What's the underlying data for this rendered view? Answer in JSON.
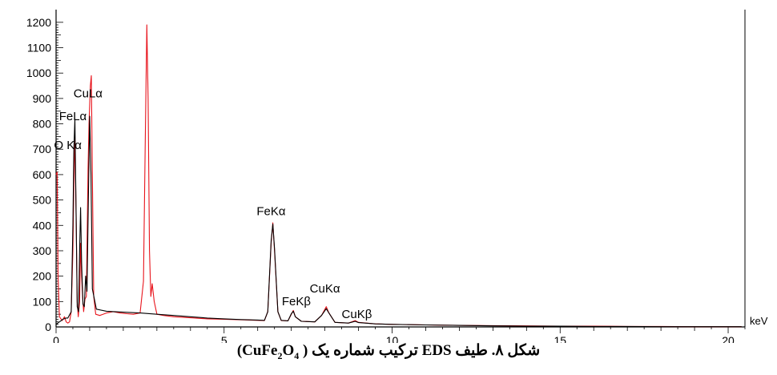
{
  "chart_data": {
    "type": "line",
    "xlabel": "keV",
    "ylabel": "",
    "xlim": [
      0,
      20.5
    ],
    "ylim": [
      0,
      1250
    ],
    "x_ticks": [
      0,
      5,
      10,
      15,
      20
    ],
    "y_ticks": [
      0,
      100,
      200,
      300,
      400,
      500,
      600,
      700,
      800,
      900,
      1000,
      1100,
      1200
    ],
    "grid": false,
    "series": [
      {
        "color": "#e8141c",
        "points": [
          [
            0.0,
            600
          ],
          [
            0.03,
            610
          ],
          [
            0.06,
            200
          ],
          [
            0.1,
            40
          ],
          [
            0.18,
            25
          ],
          [
            0.25,
            40
          ],
          [
            0.3,
            20
          ],
          [
            0.35,
            15
          ],
          [
            0.4,
            20
          ],
          [
            0.45,
            60
          ],
          [
            0.5,
            300
          ],
          [
            0.53,
            560
          ],
          [
            0.56,
            750
          ],
          [
            0.6,
            400
          ],
          [
            0.63,
            100
          ],
          [
            0.66,
            40
          ],
          [
            0.7,
            100
          ],
          [
            0.73,
            330
          ],
          [
            0.76,
            200
          ],
          [
            0.79,
            120
          ],
          [
            0.82,
            60
          ],
          [
            0.86,
            110
          ],
          [
            0.9,
            120
          ],
          [
            0.95,
            620
          ],
          [
            0.98,
            800
          ],
          [
            1.02,
            950
          ],
          [
            1.05,
            990
          ],
          [
            1.08,
            600
          ],
          [
            1.12,
            120
          ],
          [
            1.18,
            50
          ],
          [
            1.3,
            45
          ],
          [
            1.5,
            55
          ],
          [
            1.7,
            60
          ],
          [
            1.9,
            55
          ],
          [
            2.1,
            52
          ],
          [
            2.3,
            50
          ],
          [
            2.5,
            55
          ],
          [
            2.6,
            180
          ],
          [
            2.65,
            700
          ],
          [
            2.7,
            1190
          ],
          [
            2.74,
            900
          ],
          [
            2.78,
            300
          ],
          [
            2.82,
            120
          ],
          [
            2.86,
            170
          ],
          [
            2.92,
            100
          ],
          [
            3.0,
            50
          ],
          [
            3.2,
            45
          ],
          [
            3.5,
            40
          ],
          [
            4.0,
            36
          ],
          [
            4.5,
            32
          ],
          [
            5.0,
            30
          ],
          [
            5.5,
            28
          ],
          [
            6.0,
            26
          ],
          [
            6.2,
            25
          ],
          [
            6.3,
            60
          ],
          [
            6.4,
            330
          ],
          [
            6.45,
            410
          ],
          [
            6.5,
            300
          ],
          [
            6.6,
            60
          ],
          [
            6.7,
            25
          ],
          [
            6.9,
            24
          ],
          [
            7.0,
            50
          ],
          [
            7.06,
            65
          ],
          [
            7.12,
            40
          ],
          [
            7.3,
            22
          ],
          [
            7.7,
            20
          ],
          [
            7.9,
            45
          ],
          [
            8.04,
            80
          ],
          [
            8.12,
            55
          ],
          [
            8.3,
            18
          ],
          [
            8.7,
            15
          ],
          [
            8.9,
            25
          ],
          [
            9.0,
            18
          ],
          [
            9.5,
            12
          ],
          [
            10.0,
            10
          ],
          [
            11.0,
            8
          ],
          [
            12.0,
            6
          ],
          [
            13.0,
            5
          ],
          [
            14.0,
            4
          ],
          [
            15.0,
            3
          ],
          [
            16.0,
            3
          ],
          [
            17.0,
            2
          ],
          [
            18.0,
            2
          ],
          [
            19.0,
            1
          ],
          [
            20.0,
            1
          ],
          [
            20.4,
            1
          ]
        ]
      },
      {
        "color": "#000000",
        "points": [
          [
            0.0,
            10
          ],
          [
            0.05,
            15
          ],
          [
            0.1,
            20
          ],
          [
            0.2,
            30
          ],
          [
            0.3,
            35
          ],
          [
            0.35,
            35
          ],
          [
            0.45,
            60
          ],
          [
            0.5,
            400
          ],
          [
            0.53,
            700
          ],
          [
            0.56,
            820
          ],
          [
            0.59,
            500
          ],
          [
            0.63,
            80
          ],
          [
            0.67,
            60
          ],
          [
            0.7,
            300
          ],
          [
            0.73,
            470
          ],
          [
            0.76,
            250
          ],
          [
            0.8,
            90
          ],
          [
            0.84,
            80
          ],
          [
            0.88,
            200
          ],
          [
            0.92,
            140
          ],
          [
            0.96,
            500
          ],
          [
            1.0,
            830
          ],
          [
            1.04,
            600
          ],
          [
            1.08,
            150
          ],
          [
            1.2,
            70
          ],
          [
            1.5,
            62
          ],
          [
            2.0,
            58
          ],
          [
            2.5,
            55
          ],
          [
            3.0,
            50
          ],
          [
            3.5,
            45
          ],
          [
            4.0,
            40
          ],
          [
            4.5,
            35
          ],
          [
            5.0,
            32
          ],
          [
            5.5,
            29
          ],
          [
            6.0,
            27
          ],
          [
            6.2,
            26
          ],
          [
            6.3,
            60
          ],
          [
            6.4,
            340
          ],
          [
            6.45,
            405
          ],
          [
            6.5,
            310
          ],
          [
            6.6,
            60
          ],
          [
            6.7,
            26
          ],
          [
            6.9,
            24
          ],
          [
            7.0,
            52
          ],
          [
            7.06,
            62
          ],
          [
            7.12,
            40
          ],
          [
            7.3,
            22
          ],
          [
            7.7,
            20
          ],
          [
            7.9,
            45
          ],
          [
            8.04,
            72
          ],
          [
            8.12,
            55
          ],
          [
            8.3,
            18
          ],
          [
            8.7,
            15
          ],
          [
            8.9,
            22
          ],
          [
            9.0,
            17
          ],
          [
            9.5,
            12
          ],
          [
            10.0,
            10
          ],
          [
            11.0,
            8
          ],
          [
            12.0,
            6
          ],
          [
            13.0,
            4
          ],
          [
            14.0,
            3
          ],
          [
            15.0,
            3
          ],
          [
            16.0,
            2
          ],
          [
            17.0,
            2
          ],
          [
            18.0,
            1
          ],
          [
            19.0,
            1
          ],
          [
            20.0,
            1
          ],
          [
            20.4,
            1
          ]
        ]
      }
    ],
    "annotations": [
      {
        "text": "CuLα",
        "x": 0.95,
        "y": 905
      },
      {
        "text": "FeLα",
        "x": 0.5,
        "y": 815
      },
      {
        "text": "O Kα",
        "x": 0.35,
        "y": 700
      },
      {
        "text": "FeKα",
        "x": 6.4,
        "y": 440
      },
      {
        "text": "CuKα",
        "x": 8.0,
        "y": 135
      },
      {
        "text": "FeKβ",
        "x": 7.15,
        "y": 85
      },
      {
        "text": "CuKβ",
        "x": 8.95,
        "y": 35
      }
    ]
  },
  "caption": {
    "prefix": "شکل ۸. طیف EDS ترکیب شماره یک ( ",
    "formula_parts": [
      "CuFe",
      "2",
      "O",
      "4",
      ")"
    ]
  }
}
